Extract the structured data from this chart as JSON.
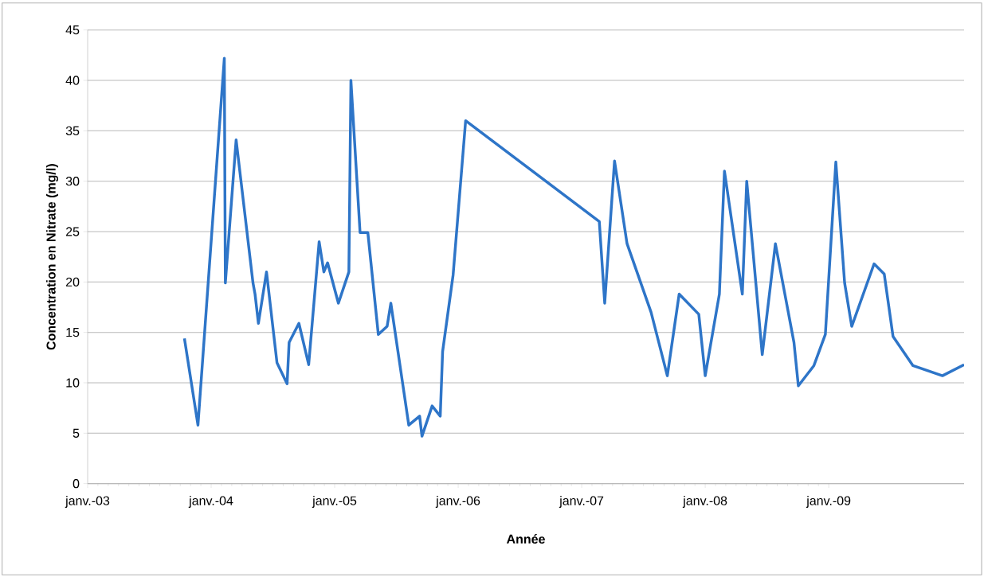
{
  "chart_data": {
    "type": "line",
    "xlabel": "Année",
    "ylabel": "Concentration en Nitrate (mg/l)",
    "x": [
      "2003-10-14",
      "2003-11-23",
      "2004-02-09",
      "2004-02-12",
      "2004-03-15",
      "2004-05-04",
      "2004-05-10",
      "2004-05-20",
      "2004-06-13",
      "2004-07-14",
      "2004-08-13",
      "2004-08-19",
      "2004-09-17",
      "2004-10-16",
      "2004-11-16",
      "2004-11-30",
      "2004-12-11",
      "2005-01-12",
      "2005-02-12",
      "2005-02-18",
      "2005-03-17",
      "2005-04-09",
      "2005-05-10",
      "2005-06-05",
      "2005-06-16",
      "2005-08-08",
      "2005-09-09",
      "2005-09-16",
      "2005-10-16",
      "2005-11-09",
      "2005-11-16",
      "2005-12-17",
      "2006-01-23",
      "2007-02-22",
      "2007-03-10",
      "2007-04-08",
      "2007-05-15",
      "2007-07-25",
      "2007-09-11",
      "2007-10-16",
      "2007-12-13",
      "2008-01-01",
      "2008-02-12",
      "2008-02-27",
      "2008-04-20",
      "2008-05-03",
      "2008-06-18",
      "2008-07-27",
      "2008-09-20",
      "2008-10-03",
      "2008-11-18",
      "2008-12-22",
      "2009-01-22",
      "2009-02-17",
      "2009-03-10",
      "2009-05-15",
      "2009-06-14",
      "2009-07-10",
      "2009-09-07",
      "2009-12-03",
      "2010-02-05"
    ],
    "values": [
      14.4,
      5.8,
      42.2,
      19.9,
      34.1,
      19.9,
      18.8,
      15.9,
      21.0,
      12.0,
      9.9,
      14.0,
      15.9,
      11.8,
      24.0,
      21.0,
      21.9,
      17.9,
      21.0,
      40.0,
      24.9,
      24.9,
      14.8,
      15.6,
      17.9,
      5.8,
      6.7,
      4.7,
      7.7,
      6.7,
      13.1,
      20.7,
      36.0,
      26.0,
      17.9,
      32.0,
      23.8,
      17.0,
      10.7,
      18.8,
      16.8,
      10.7,
      18.8,
      31.0,
      18.8,
      30.0,
      12.8,
      23.8,
      14.0,
      9.7,
      11.7,
      14.8,
      31.9,
      19.9,
      15.6,
      21.8,
      20.8,
      14.6,
      11.7,
      10.7,
      11.8
    ],
    "color": "#2e75c8",
    "xlim": [
      "2003-01-01",
      "2010-02-05"
    ],
    "xticks": [
      {
        "value": "2003-01-01",
        "label": "janv.-03"
      },
      {
        "value": "2004-01-01",
        "label": "janv.-04"
      },
      {
        "value": "2005-01-01",
        "label": "janv.-05"
      },
      {
        "value": "2006-01-01",
        "label": "janv.-06"
      },
      {
        "value": "2007-01-01",
        "label": "janv.-07"
      },
      {
        "value": "2008-01-01",
        "label": "janv.-08"
      },
      {
        "value": "2009-01-01",
        "label": "janv.-09"
      }
    ],
    "ylim": [
      0,
      45
    ],
    "yticks": [
      0,
      5,
      10,
      15,
      20,
      25,
      30,
      35,
      40,
      45
    ],
    "grid": "y",
    "marker": "none",
    "line_style": "solid"
  }
}
